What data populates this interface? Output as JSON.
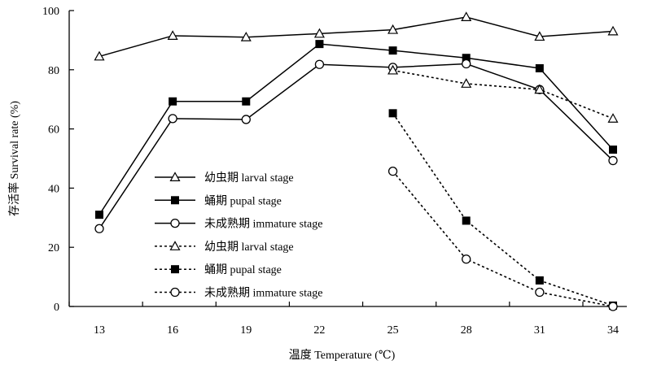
{
  "chart_data": {
    "type": "line",
    "xlabel": "温度 Temperature (℃)",
    "ylabel": "存活率 Survival rate (%)",
    "x": [
      13,
      16,
      19,
      22,
      25,
      28,
      31,
      34
    ],
    "ylim": [
      0,
      100
    ],
    "yticks": [
      0,
      20,
      40,
      60,
      80,
      100
    ],
    "grid": false,
    "legend_position": "center-left",
    "series": [
      {
        "name": "幼虫期 larval stage",
        "marker": "triangle-open",
        "line": "solid",
        "points": [
          [
            13,
            84.5
          ],
          [
            16,
            91.5
          ],
          [
            19,
            91
          ],
          [
            22,
            92.2
          ],
          [
            25,
            93.5
          ],
          [
            28,
            97.8
          ],
          [
            31,
            91.2
          ],
          [
            34,
            93
          ]
        ]
      },
      {
        "name": "蛹期 pupal stage",
        "marker": "square-filled",
        "line": "solid",
        "points": [
          [
            13,
            31
          ],
          [
            16,
            69.3
          ],
          [
            19,
            69.3
          ],
          [
            22,
            88.7
          ],
          [
            25,
            86.5
          ],
          [
            28,
            84
          ],
          [
            31,
            80.5
          ],
          [
            34,
            53
          ]
        ]
      },
      {
        "name": "未成熟期 immature stage",
        "marker": "circle-open",
        "line": "solid",
        "points": [
          [
            13,
            26.3
          ],
          [
            16,
            63.5
          ],
          [
            19,
            63.2
          ],
          [
            22,
            81.8
          ],
          [
            25,
            80.8
          ],
          [
            28,
            82
          ],
          [
            31,
            73.3
          ],
          [
            34,
            49.3
          ]
        ]
      },
      {
        "name": "幼虫期 larval stage",
        "marker": "triangle-open",
        "line": "dotted",
        "points": [
          [
            25,
            79.8
          ],
          [
            28,
            75.3
          ],
          [
            31,
            73.3
          ],
          [
            34,
            63.5
          ]
        ]
      },
      {
        "name": "蛹期 pupal stage",
        "marker": "square-filled",
        "line": "dotted",
        "points": [
          [
            25,
            65.3
          ],
          [
            28,
            29
          ],
          [
            31,
            8.8
          ],
          [
            34,
            0.3
          ]
        ]
      },
      {
        "name": "未成熟期 immature stage",
        "marker": "circle-open",
        "line": "dotted",
        "points": [
          [
            25,
            45.7
          ],
          [
            28,
            16
          ],
          [
            31,
            4.8
          ],
          [
            34,
            0
          ]
        ]
      }
    ]
  }
}
